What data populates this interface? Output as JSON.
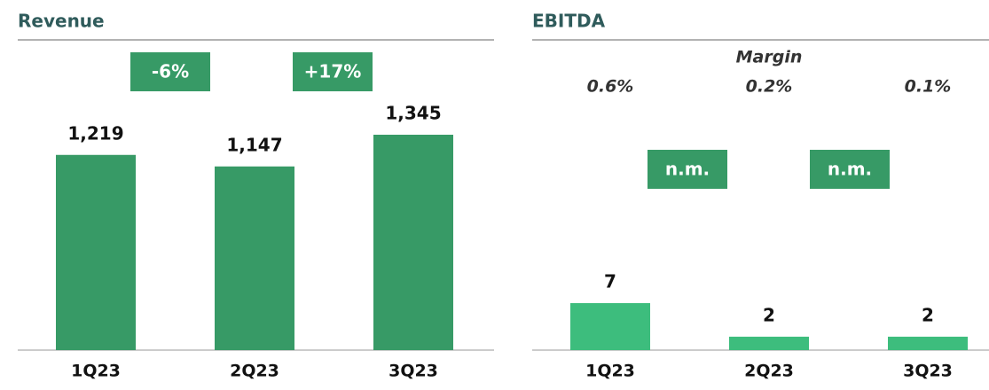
{
  "chart_data": [
    {
      "type": "bar",
      "title": "Revenue",
      "categories": [
        "1Q23",
        "2Q23",
        "3Q23"
      ],
      "values": [
        1219,
        1147,
        1345
      ],
      "value_labels": [
        "1,219",
        "1,147",
        "1,345"
      ],
      "color": "#379a66",
      "changes": [
        "-6%",
        "+17%"
      ]
    },
    {
      "type": "bar",
      "title": "EBITDA",
      "categories": [
        "1Q23",
        "2Q23",
        "3Q23"
      ],
      "values": [
        7,
        2,
        2
      ],
      "color": "#3dbd7d",
      "changes": [
        "n.m.",
        "n.m."
      ],
      "margin": {
        "title": "Margin",
        "labels": [
          "0.6%",
          "0.2%",
          "0.1%"
        ]
      }
    }
  ]
}
